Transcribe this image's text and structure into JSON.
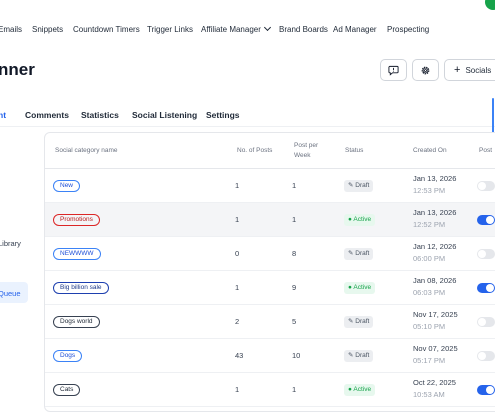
{
  "topnav": {
    "items": [
      "Emails",
      "Snippets",
      "Countdown Timers",
      "Trigger Links",
      "Affiliate Manager",
      "Brand Boards",
      "Ad Manager",
      "Prospecting"
    ]
  },
  "header": {
    "title": "nner",
    "socials_label": "Socials"
  },
  "tabs": [
    "nt",
    "Comments",
    "Statistics",
    "Social Listening",
    "Settings"
  ],
  "sidebar": {
    "library": "Library",
    "queue": "Queue"
  },
  "table": {
    "headers": {
      "category": "Social category name",
      "posts": "No. of Posts",
      "per_week_1": "Post per",
      "per_week_2": "Week",
      "status": "Status",
      "created": "Created On",
      "post": "Post"
    },
    "rows": [
      {
        "name": "New",
        "posts": "1",
        "per_week": "1",
        "status": "Draft",
        "date": "Jan 13, 2026",
        "time": "12:53 PM"
      },
      {
        "name": "Promotions",
        "posts": "1",
        "per_week": "1",
        "status": "Active",
        "date": "Jan 13, 2026",
        "time": "12:52 PM"
      },
      {
        "name": "NEWWWW",
        "posts": "0",
        "per_week": "8",
        "status": "Draft",
        "date": "Jan 12, 2026",
        "time": "06:00 PM"
      },
      {
        "name": "Big billion sale",
        "posts": "1",
        "per_week": "9",
        "status": "Active",
        "date": "Jan 08, 2026",
        "time": "06:03 PM"
      },
      {
        "name": "Dogs world",
        "posts": "2",
        "per_week": "5",
        "status": "Draft",
        "date": "Nov 17, 2025",
        "time": "05:10 PM"
      },
      {
        "name": "Dogs",
        "posts": "43",
        "per_week": "10",
        "status": "Draft",
        "date": "Nov 07, 2025",
        "time": "05:17 PM"
      },
      {
        "name": "Cats",
        "posts": "1",
        "per_week": "1",
        "status": "Active",
        "date": "Oct 22, 2025",
        "time": "10:53 AM"
      }
    ]
  },
  "colors": {
    "accent": "#2563eb",
    "active_status": "#16a34a",
    "promotions_badge": "#dc2626",
    "dogs_world_badge": "#374151"
  },
  "icons": {
    "message": "message-square-icon",
    "settings": "gear-icon",
    "draft": "edit-icon",
    "active": "dot-icon"
  }
}
